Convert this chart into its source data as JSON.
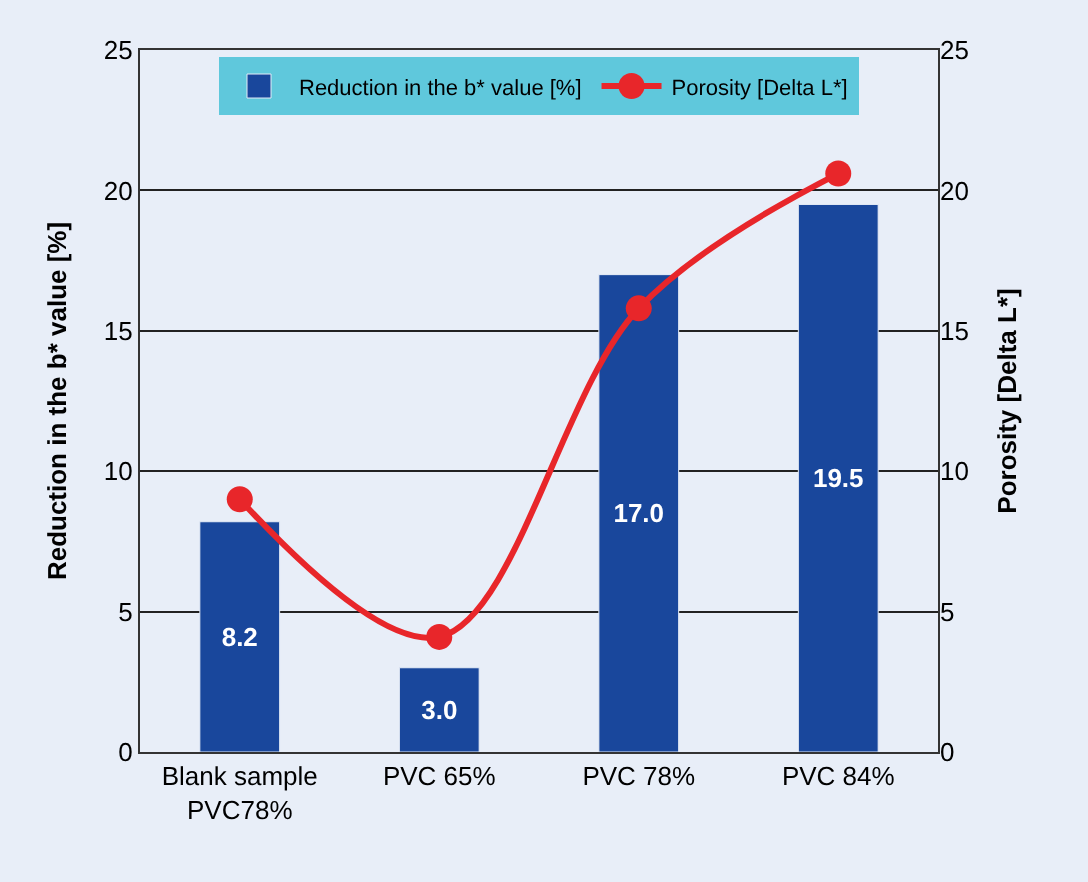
{
  "chart_data": {
    "type": "bar",
    "categories": [
      "Blank sample\nPVC78%",
      "PVC 65%",
      "PVC 78%",
      "PVC 84%"
    ],
    "ylabel": "Reduction in the b* value [%]",
    "y2label": "Porosity [Delta L*]",
    "series": [
      {
        "name": "Reduction in the b* value [%]",
        "color": "#19479c",
        "values": [
          8.2,
          3.0,
          17.0,
          19.5
        ],
        "value_labels": [
          "8.2",
          "3.0",
          "17.0",
          "19.5"
        ]
      },
      {
        "name": "Porosity [Delta L*]",
        "type": "line",
        "axis": "y2",
        "color": "#e8262a",
        "values": [
          9.0,
          4.1,
          15.8,
          20.6
        ]
      }
    ],
    "ylim": [
      0,
      25
    ],
    "yticks": [
      0,
      5,
      10,
      15,
      20,
      25
    ],
    "y2lim": [
      0,
      25
    ],
    "y2ticks": [
      0,
      5,
      10,
      15,
      20,
      25
    ],
    "grid": "y",
    "legend": "top",
    "marker": "circle",
    "line_style": "solid"
  }
}
